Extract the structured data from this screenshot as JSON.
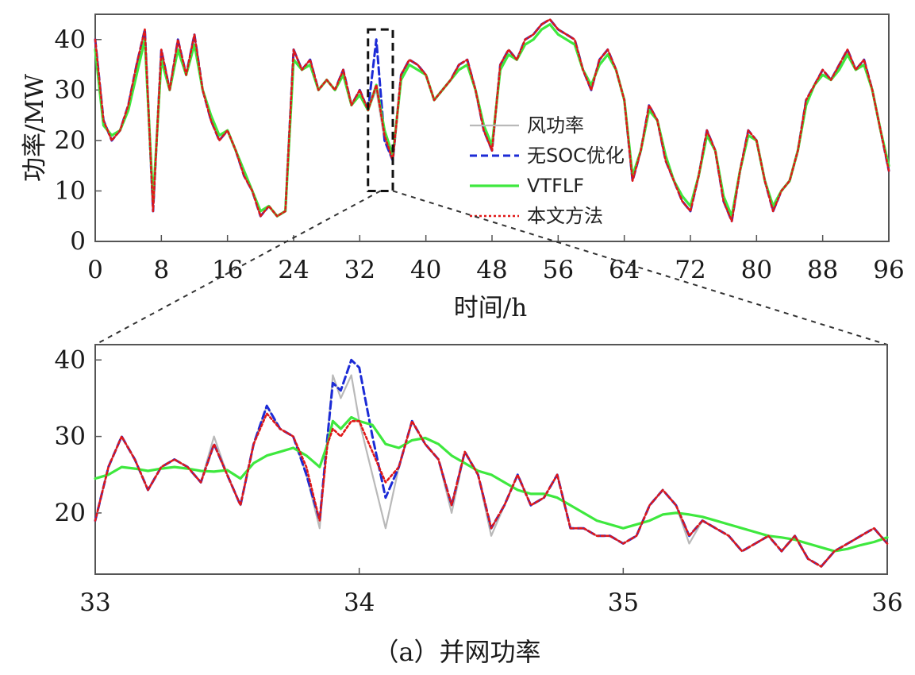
{
  "caption": "（a）并网功率",
  "colors": {
    "wind": "#b9b9b9",
    "no_soc": "#1c2bd6",
    "vtflf": "#3ee83e",
    "proposed": "#e01818",
    "axis": "#555555"
  },
  "chart_data": [
    {
      "type": "line",
      "panel": "overview",
      "xlabel": "时间/h",
      "ylabel": "功率/MW",
      "xlim": [
        0,
        96
      ],
      "ylim": [
        0,
        45
      ],
      "xticks": [
        0,
        8,
        16,
        24,
        32,
        40,
        48,
        56,
        64,
        72,
        80,
        88,
        96
      ],
      "yticks": [
        0,
        10,
        20,
        30,
        40
      ],
      "grid": false,
      "legend_position": "center",
      "zoom_box": {
        "x": [
          33,
          36
        ],
        "y": [
          10,
          42
        ]
      },
      "x": [
        0,
        1,
        2,
        3,
        4,
        5,
        6,
        7,
        8,
        9,
        10,
        11,
        12,
        13,
        14,
        15,
        16,
        17,
        18,
        19,
        20,
        21,
        22,
        23,
        24,
        25,
        26,
        27,
        28,
        29,
        30,
        31,
        32,
        33,
        34,
        35,
        36,
        37,
        38,
        39,
        40,
        41,
        42,
        43,
        44,
        45,
        46,
        47,
        48,
        49,
        50,
        51,
        52,
        53,
        54,
        55,
        56,
        57,
        58,
        59,
        60,
        61,
        62,
        63,
        64,
        65,
        66,
        67,
        68,
        69,
        70,
        71,
        72,
        73,
        74,
        75,
        76,
        77,
        78,
        79,
        80,
        81,
        82,
        83,
        84,
        85,
        86,
        87,
        88,
        89,
        90,
        91,
        92,
        93,
        94,
        95,
        96
      ],
      "series": [
        {
          "name": "风功率",
          "values": [
            40,
            24,
            20,
            22,
            27,
            35,
            42,
            6,
            38,
            30,
            40,
            33,
            41,
            30,
            24,
            20,
            22,
            18,
            13,
            10,
            5,
            7,
            5,
            6,
            38,
            34,
            36,
            30,
            32,
            30,
            34,
            27,
            30,
            26,
            30,
            20,
            16,
            33,
            36,
            35,
            33,
            28,
            30,
            32,
            35,
            36,
            30,
            22,
            18,
            35,
            38,
            36,
            40,
            41,
            43,
            44,
            42,
            41,
            40,
            34,
            30,
            36,
            38,
            34,
            28,
            12,
            18,
            27,
            24,
            16,
            12,
            8,
            6,
            13,
            22,
            18,
            8,
            4,
            14,
            22,
            20,
            12,
            6,
            10,
            12,
            18,
            28,
            31,
            34,
            32,
            35,
            38,
            34,
            36,
            30,
            22,
            14
          ]
        },
        {
          "name": "无SOC优化",
          "values": [
            40,
            24,
            20,
            22,
            27,
            35,
            42,
            6,
            38,
            30,
            40,
            33,
            41,
            30,
            24,
            20,
            22,
            18,
            13,
            10,
            5,
            7,
            5,
            6,
            38,
            34,
            36,
            30,
            32,
            30,
            34,
            27,
            30,
            26,
            40,
            20,
            16,
            33,
            36,
            35,
            33,
            28,
            30,
            32,
            35,
            36,
            30,
            22,
            18,
            35,
            38,
            36,
            40,
            41,
            43,
            44,
            42,
            41,
            40,
            34,
            30,
            36,
            38,
            34,
            28,
            12,
            18,
            27,
            24,
            16,
            12,
            8,
            6,
            13,
            22,
            18,
            8,
            4,
            14,
            22,
            20,
            12,
            6,
            10,
            12,
            18,
            28,
            31,
            34,
            32,
            35,
            38,
            34,
            36,
            30,
            22,
            14
          ]
        },
        {
          "name": "VTFLF",
          "values": [
            38,
            23,
            21,
            22,
            26,
            33,
            40,
            8,
            36,
            30,
            38,
            33,
            39,
            30,
            25,
            21,
            22,
            18,
            14,
            10,
            6,
            7,
            5,
            6,
            36,
            34,
            35,
            30,
            32,
            30,
            33,
            27,
            29,
            26,
            31,
            22,
            17,
            32,
            35,
            34,
            33,
            28,
            30,
            32,
            34,
            35,
            30,
            23,
            19,
            34,
            37,
            36,
            39,
            40,
            42,
            43,
            41,
            40,
            39,
            34,
            31,
            35,
            37,
            34,
            28,
            13,
            18,
            26,
            24,
            17,
            12,
            9,
            7,
            13,
            21,
            18,
            9,
            5,
            14,
            21,
            20,
            12,
            7,
            10,
            12,
            18,
            27,
            31,
            33,
            32,
            34,
            37,
            34,
            35,
            30,
            22,
            15
          ]
        },
        {
          "name": "本文方法",
          "values": [
            40,
            24,
            20,
            22,
            27,
            35,
            42,
            6,
            38,
            30,
            40,
            33,
            41,
            30,
            24,
            20,
            22,
            18,
            13,
            10,
            5,
            7,
            5,
            6,
            38,
            34,
            36,
            30,
            32,
            30,
            34,
            27,
            30,
            26,
            31,
            21,
            16,
            33,
            36,
            35,
            33,
            28,
            30,
            32,
            35,
            36,
            30,
            22,
            18,
            35,
            38,
            36,
            40,
            41,
            43,
            44,
            42,
            41,
            40,
            34,
            30,
            36,
            38,
            34,
            28,
            12,
            18,
            27,
            24,
            16,
            12,
            8,
            6,
            13,
            22,
            18,
            8,
            4,
            14,
            22,
            20,
            12,
            6,
            10,
            12,
            18,
            28,
            31,
            34,
            32,
            35,
            38,
            34,
            36,
            30,
            22,
            14
          ]
        }
      ]
    },
    {
      "type": "line",
      "panel": "zoom",
      "xlim": [
        33,
        36
      ],
      "ylim": [
        12,
        42
      ],
      "xticks": [
        33,
        34,
        35,
        36
      ],
      "yticks": [
        20,
        30,
        40
      ],
      "grid": false,
      "x": [
        33.0,
        33.05,
        33.1,
        33.15,
        33.2,
        33.25,
        33.3,
        33.35,
        33.4,
        33.45,
        33.5,
        33.55,
        33.6,
        33.65,
        33.7,
        33.75,
        33.8,
        33.85,
        33.88,
        33.9,
        33.93,
        33.97,
        34.0,
        34.05,
        34.1,
        34.15,
        34.2,
        34.25,
        34.3,
        34.35,
        34.4,
        34.45,
        34.5,
        34.55,
        34.6,
        34.65,
        34.7,
        34.75,
        34.8,
        34.85,
        34.9,
        34.95,
        35.0,
        35.05,
        35.1,
        35.15,
        35.2,
        35.25,
        35.3,
        35.35,
        35.4,
        35.45,
        35.5,
        35.55,
        35.6,
        35.65,
        35.7,
        35.75,
        35.8,
        35.85,
        35.9,
        35.95,
        36.0
      ],
      "series": [
        {
          "name": "风功率",
          "values": [
            19,
            26,
            30,
            27,
            23,
            26,
            27,
            26,
            24,
            30,
            25,
            21,
            29,
            34,
            31,
            30,
            25,
            18,
            30,
            38,
            35,
            38,
            32,
            25,
            18,
            26,
            32,
            29,
            27,
            20,
            28,
            25,
            17,
            21,
            25,
            21,
            22,
            25,
            18,
            18,
            17,
            17,
            16,
            17,
            21,
            23,
            21,
            16,
            19,
            18,
            17,
            15,
            16,
            17,
            15,
            17,
            14,
            13,
            15,
            16,
            17,
            18,
            16
          ]
        },
        {
          "name": "无SOC优化",
          "values": [
            19,
            26,
            30,
            27,
            23,
            26,
            27,
            26,
            24,
            29,
            25,
            21,
            29,
            34,
            31,
            30,
            25,
            19,
            30,
            37,
            36,
            40,
            39,
            30,
            22,
            26,
            32,
            29,
            27,
            21,
            28,
            25,
            18,
            21,
            25,
            21,
            22,
            25,
            18,
            18,
            17,
            17,
            16,
            17,
            21,
            23,
            21,
            17,
            19,
            18,
            17,
            15,
            16,
            17,
            15,
            17,
            14,
            13,
            15,
            16,
            17,
            18,
            16
          ]
        },
        {
          "name": "VTFLF",
          "values": [
            24.5,
            25,
            26,
            25.8,
            25.5,
            25.8,
            26,
            25.8,
            25.5,
            25.4,
            25.6,
            24.5,
            26.5,
            27.5,
            28,
            28.5,
            27.5,
            26,
            29,
            32,
            31,
            32.5,
            32,
            31.5,
            29,
            28.5,
            29.5,
            29.8,
            29,
            27.5,
            26.5,
            25.5,
            25,
            24,
            23,
            22.5,
            22.5,
            22,
            21,
            20,
            19,
            18.5,
            18,
            18.5,
            19,
            19.8,
            20,
            19.8,
            19.5,
            19,
            18.5,
            18,
            17.5,
            17,
            16.8,
            16.5,
            16,
            15.5,
            15,
            15.3,
            15.8,
            16.2,
            16.8
          ]
        },
        {
          "name": "本文方法",
          "values": [
            19,
            26,
            30,
            27,
            23,
            26,
            27,
            26,
            24,
            29,
            25,
            21,
            29,
            33,
            31,
            30,
            26,
            19,
            29,
            31,
            30,
            32,
            32,
            28,
            24,
            26,
            32,
            29,
            27,
            21,
            28,
            25,
            18,
            21,
            25,
            21,
            22,
            25,
            18,
            18,
            17,
            17,
            16,
            17,
            21,
            23,
            21,
            17,
            19,
            18,
            17,
            15,
            16,
            17,
            15,
            17,
            14,
            13,
            15,
            16,
            17,
            18,
            16
          ]
        }
      ]
    }
  ]
}
